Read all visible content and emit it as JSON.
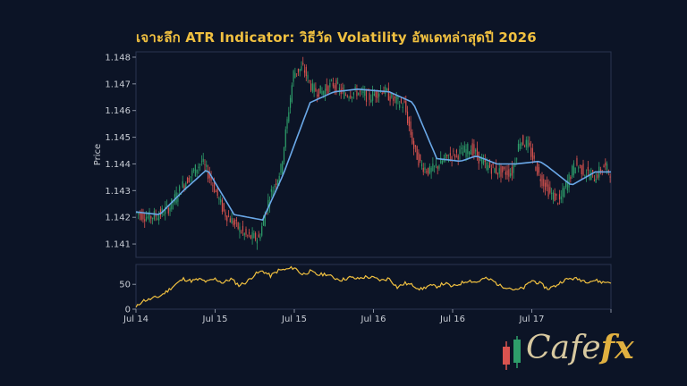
{
  "title": "เจาะลึก ATR Indicator: วิธีวัด Volatility อัพเดทล่าสุดปี 2026",
  "logo": {
    "main": "Cafe",
    "accent": "fx"
  },
  "colors": {
    "background": "#0c1426",
    "candle_up": "#2e9e6a",
    "candle_down": "#d9534f",
    "ma_line": "#6aa8e8",
    "atr_line": "#f0c040",
    "title": "#f0c040"
  },
  "chart_data": [
    {
      "type": "candlestick",
      "ylabel": "Price",
      "ylim": [
        1.1405,
        1.1482
      ],
      "yticks": [
        "1.141",
        "1.142",
        "1.143",
        "1.144",
        "1.145",
        "1.146",
        "1.147",
        "1.148"
      ],
      "candle_count": 300,
      "moving_average": {
        "x": [
          0,
          15,
          30,
          45,
          62,
          80,
          93,
          110,
          125,
          140,
          160,
          175,
          190,
          205,
          215,
          228,
          240,
          255,
          260,
          275,
          290,
          300
        ],
        "y": [
          1.1422,
          1.1421,
          1.143,
          1.1438,
          1.1421,
          1.1419,
          1.1436,
          1.1463,
          1.1467,
          1.1468,
          1.1467,
          1.1463,
          1.1442,
          1.1441,
          1.1443,
          1.144,
          1.144,
          1.1441,
          1.1439,
          1.1432,
          1.1437,
          1.1437
        ]
      },
      "price_path": {
        "x": [
          0,
          8,
          15,
          22,
          30,
          42,
          48,
          56,
          62,
          70,
          78,
          85,
          92,
          100,
          106,
          112,
          118,
          125,
          132,
          140,
          148,
          156,
          163,
          170,
          176,
          180,
          186,
          192,
          198,
          205,
          212,
          220,
          230,
          238,
          243,
          248,
          255,
          262,
          268,
          272,
          278,
          284,
          290,
          296,
          300
        ],
        "y": [
          1.1422,
          1.142,
          1.1421,
          1.1424,
          1.1432,
          1.1441,
          1.1434,
          1.1422,
          1.1418,
          1.1413,
          1.1412,
          1.1428,
          1.1438,
          1.1474,
          1.1476,
          1.1468,
          1.1467,
          1.147,
          1.1466,
          1.1467,
          1.1465,
          1.1468,
          1.1464,
          1.1462,
          1.1446,
          1.144,
          1.1437,
          1.144,
          1.1443,
          1.1444,
          1.1446,
          1.144,
          1.1437,
          1.1437,
          1.1449,
          1.1447,
          1.1436,
          1.1429,
          1.1426,
          1.1432,
          1.144,
          1.1437,
          1.1435,
          1.1439,
          1.1437
        ]
      }
    },
    {
      "type": "line",
      "name": "ATR",
      "ylim": [
        0,
        90
      ],
      "yticks": [
        "0",
        "50"
      ],
      "xticks": [
        {
          "index": 0,
          "label": "Jul 14"
        },
        {
          "index": 50,
          "label": "Jul 15"
        },
        {
          "index": 100,
          "label": "Jul 15"
        },
        {
          "index": 150,
          "label": "Jul 16"
        },
        {
          "index": 200,
          "label": "Jul 16"
        },
        {
          "index": 250,
          "label": "Jul 17"
        }
      ],
      "x": [
        0,
        4,
        8,
        15,
        20,
        25,
        30,
        35,
        40,
        45,
        50,
        55,
        60,
        65,
        70,
        75,
        80,
        85,
        90,
        95,
        100,
        105,
        110,
        115,
        120,
        125,
        130,
        135,
        140,
        145,
        150,
        155,
        160,
        165,
        170,
        175,
        180,
        185,
        190,
        195,
        200,
        205,
        210,
        215,
        220,
        225,
        230,
        235,
        240,
        245,
        250,
        255,
        260,
        265,
        270,
        275,
        280,
        285,
        290,
        295,
        300
      ],
      "y": [
        3,
        17,
        19,
        26,
        37,
        50,
        61,
        57,
        60,
        55,
        61,
        53,
        61,
        48,
        55,
        70,
        77,
        67,
        78,
        80,
        84,
        70,
        76,
        69,
        71,
        63,
        59,
        64,
        61,
        65,
        63,
        58,
        62,
        44,
        52,
        48,
        40,
        47,
        46,
        52,
        45,
        52,
        58,
        54,
        62,
        58,
        47,
        44,
        38,
        43,
        58,
        52,
        41,
        47,
        58,
        62,
        60,
        56,
        58,
        54,
        55
      ]
    }
  ]
}
